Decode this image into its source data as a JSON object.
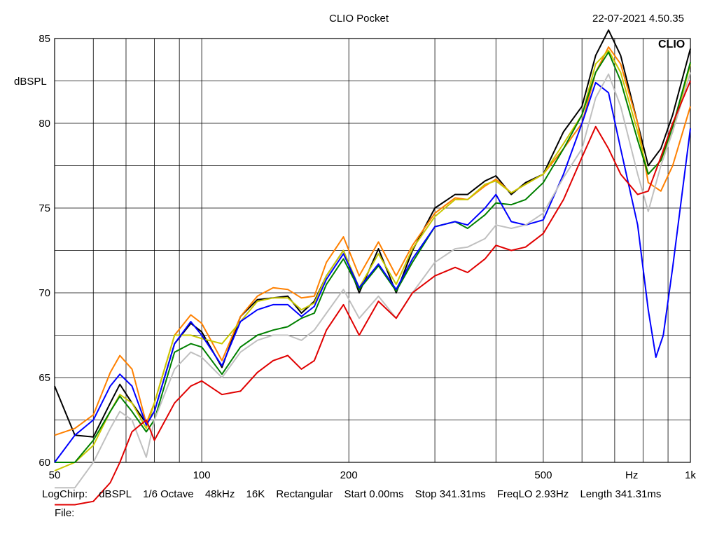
{
  "header": {
    "title": "CLIO Pocket",
    "timestamp": "22-07-2021 4.50.35",
    "logo_text": "CLIO"
  },
  "footer": {
    "items": [
      "LogChirp:",
      "dBSPL",
      "1/6 Octave",
      "48kHz",
      "16K",
      "Rectangular",
      "Start 0.00ms",
      "Stop 341.31ms",
      "FreqLO 2.93Hz",
      "Length 341.31ms"
    ],
    "file_label": "File:"
  },
  "chart_data": {
    "type": "line",
    "title": "CLIO Pocket",
    "xlabel": "Hz",
    "ylabel": "dBSPL",
    "x_scale": "log",
    "xlim": [
      50,
      1000
    ],
    "ylim": [
      60,
      85
    ],
    "x_ticks": [
      {
        "value": 50,
        "label": "50"
      },
      {
        "value": 100,
        "label": "100"
      },
      {
        "value": 200,
        "label": "200"
      },
      {
        "value": 500,
        "label": "500"
      },
      {
        "value": 1000,
        "label": "1k"
      }
    ],
    "y_ticks": [
      {
        "value": 60,
        "label": "60"
      },
      {
        "value": 65,
        "label": "65"
      },
      {
        "value": 70,
        "label": "70"
      },
      {
        "value": 75,
        "label": "75"
      },
      {
        "value": 80,
        "label": "80"
      },
      {
        "value": 85,
        "label": "85"
      }
    ],
    "grid": true,
    "series": [
      {
        "color": "#000000",
        "points": [
          [
            50,
            64.5
          ],
          [
            55,
            61.6
          ],
          [
            60,
            61.5
          ],
          [
            65,
            63.5
          ],
          [
            68,
            64.6
          ],
          [
            72,
            63.5
          ],
          [
            77,
            62.3
          ],
          [
            80,
            63.0
          ],
          [
            88,
            67.0
          ],
          [
            95,
            68.2
          ],
          [
            100,
            67.7
          ],
          [
            110,
            65.6
          ],
          [
            120,
            68.6
          ],
          [
            130,
            69.6
          ],
          [
            140,
            69.7
          ],
          [
            150,
            69.8
          ],
          [
            160,
            68.8
          ],
          [
            170,
            69.5
          ],
          [
            180,
            71.0
          ],
          [
            195,
            72.5
          ],
          [
            210,
            70.0
          ],
          [
            230,
            72.6
          ],
          [
            250,
            70.0
          ],
          [
            270,
            72.5
          ],
          [
            300,
            75.0
          ],
          [
            330,
            75.8
          ],
          [
            350,
            75.8
          ],
          [
            380,
            76.6
          ],
          [
            400,
            76.9
          ],
          [
            430,
            75.8
          ],
          [
            460,
            76.5
          ],
          [
            500,
            77.0
          ],
          [
            550,
            79.5
          ],
          [
            600,
            81.0
          ],
          [
            640,
            84.0
          ],
          [
            680,
            85.5
          ],
          [
            720,
            84.0
          ],
          [
            780,
            80.0
          ],
          [
            820,
            77.5
          ],
          [
            870,
            78.5
          ],
          [
            920,
            80.5
          ],
          [
            1000,
            84.4
          ]
        ]
      },
      {
        "color": "#ff8000",
        "points": [
          [
            50,
            61.6
          ],
          [
            55,
            62.0
          ],
          [
            60,
            62.8
          ],
          [
            65,
            65.3
          ],
          [
            68,
            66.3
          ],
          [
            72,
            65.5
          ],
          [
            77,
            62.3
          ],
          [
            80,
            63.5
          ],
          [
            88,
            67.5
          ],
          [
            95,
            68.7
          ],
          [
            100,
            68.2
          ],
          [
            110,
            66.0
          ],
          [
            120,
            68.6
          ],
          [
            130,
            69.8
          ],
          [
            140,
            70.3
          ],
          [
            150,
            70.2
          ],
          [
            160,
            69.7
          ],
          [
            170,
            69.8
          ],
          [
            180,
            71.8
          ],
          [
            195,
            73.3
          ],
          [
            210,
            71.0
          ],
          [
            230,
            73.0
          ],
          [
            250,
            71.0
          ],
          [
            270,
            72.8
          ],
          [
            300,
            74.7
          ],
          [
            330,
            75.6
          ],
          [
            350,
            75.5
          ],
          [
            380,
            76.3
          ],
          [
            400,
            76.7
          ],
          [
            430,
            75.9
          ],
          [
            460,
            76.4
          ],
          [
            500,
            77.0
          ],
          [
            550,
            78.5
          ],
          [
            600,
            80.0
          ],
          [
            640,
            83.0
          ],
          [
            680,
            84.5
          ],
          [
            720,
            83.5
          ],
          [
            780,
            80.0
          ],
          [
            820,
            76.5
          ],
          [
            870,
            76.0
          ],
          [
            920,
            77.5
          ],
          [
            1000,
            81.0
          ]
        ]
      },
      {
        "color": "#c8c800",
        "points": [
          [
            50,
            59.5
          ],
          [
            55,
            60.0
          ],
          [
            60,
            61.0
          ],
          [
            65,
            63.0
          ],
          [
            68,
            64.0
          ],
          [
            72,
            63.5
          ],
          [
            77,
            62.0
          ],
          [
            80,
            63.5
          ],
          [
            88,
            67.5
          ],
          [
            95,
            67.5
          ],
          [
            100,
            67.3
          ],
          [
            110,
            67.0
          ],
          [
            120,
            68.3
          ],
          [
            130,
            69.5
          ],
          [
            140,
            69.7
          ],
          [
            150,
            69.7
          ],
          [
            160,
            69.0
          ],
          [
            170,
            69.4
          ],
          [
            180,
            71.0
          ],
          [
            195,
            72.5
          ],
          [
            210,
            70.3
          ],
          [
            230,
            72.3
          ],
          [
            250,
            70.5
          ],
          [
            270,
            72.6
          ],
          [
            300,
            74.5
          ],
          [
            330,
            75.5
          ],
          [
            350,
            75.5
          ],
          [
            380,
            76.4
          ],
          [
            400,
            76.6
          ],
          [
            430,
            75.9
          ],
          [
            460,
            76.4
          ],
          [
            500,
            77.0
          ],
          [
            550,
            78.8
          ],
          [
            600,
            80.5
          ],
          [
            640,
            83.5
          ],
          [
            680,
            84.3
          ],
          [
            720,
            83.0
          ],
          [
            780,
            79.5
          ],
          [
            820,
            77.0
          ],
          [
            870,
            77.8
          ],
          [
            920,
            79.5
          ],
          [
            1000,
            83.5
          ]
        ]
      },
      {
        "color": "#008000",
        "points": [
          [
            50,
            60.0
          ],
          [
            55,
            60.0
          ],
          [
            60,
            61.3
          ],
          [
            65,
            63.0
          ],
          [
            68,
            63.9
          ],
          [
            72,
            63.0
          ],
          [
            77,
            61.8
          ],
          [
            80,
            62.5
          ],
          [
            88,
            66.5
          ],
          [
            95,
            67.0
          ],
          [
            100,
            66.8
          ],
          [
            110,
            65.2
          ],
          [
            120,
            66.8
          ],
          [
            130,
            67.5
          ],
          [
            140,
            67.8
          ],
          [
            150,
            68.0
          ],
          [
            160,
            68.5
          ],
          [
            170,
            68.8
          ],
          [
            180,
            70.5
          ],
          [
            195,
            72.0
          ],
          [
            210,
            70.2
          ],
          [
            230,
            71.6
          ],
          [
            250,
            70.1
          ],
          [
            270,
            71.8
          ],
          [
            300,
            73.9
          ],
          [
            330,
            74.2
          ],
          [
            350,
            73.8
          ],
          [
            380,
            74.6
          ],
          [
            400,
            75.3
          ],
          [
            430,
            75.2
          ],
          [
            460,
            75.5
          ],
          [
            500,
            76.5
          ],
          [
            550,
            78.5
          ],
          [
            600,
            80.5
          ],
          [
            640,
            83.0
          ],
          [
            680,
            84.2
          ],
          [
            720,
            82.5
          ],
          [
            780,
            79.0
          ],
          [
            820,
            77.0
          ],
          [
            870,
            77.8
          ],
          [
            920,
            79.8
          ],
          [
            1000,
            83.6
          ]
        ]
      },
      {
        "color": "#0000ff",
        "points": [
          [
            50,
            60.0
          ],
          [
            55,
            61.6
          ],
          [
            60,
            62.5
          ],
          [
            65,
            64.5
          ],
          [
            68,
            65.2
          ],
          [
            72,
            64.5
          ],
          [
            77,
            62.2
          ],
          [
            80,
            63.0
          ],
          [
            88,
            67.0
          ],
          [
            95,
            68.3
          ],
          [
            100,
            67.5
          ],
          [
            110,
            65.7
          ],
          [
            120,
            68.3
          ],
          [
            130,
            69.0
          ],
          [
            140,
            69.3
          ],
          [
            150,
            69.3
          ],
          [
            160,
            68.6
          ],
          [
            170,
            69.2
          ],
          [
            180,
            70.8
          ],
          [
            195,
            72.3
          ],
          [
            210,
            70.3
          ],
          [
            230,
            71.7
          ],
          [
            250,
            70.2
          ],
          [
            270,
            72.0
          ],
          [
            300,
            73.9
          ],
          [
            330,
            74.2
          ],
          [
            350,
            74.0
          ],
          [
            380,
            75.0
          ],
          [
            400,
            75.8
          ],
          [
            430,
            74.2
          ],
          [
            460,
            74.0
          ],
          [
            500,
            74.3
          ],
          [
            550,
            77.0
          ],
          [
            600,
            80.0
          ],
          [
            640,
            82.4
          ],
          [
            680,
            81.8
          ],
          [
            720,
            78.5
          ],
          [
            780,
            74.0
          ],
          [
            820,
            69.0
          ],
          [
            850,
            66.2
          ],
          [
            880,
            67.5
          ],
          [
            920,
            71.5
          ],
          [
            1000,
            79.7
          ]
        ]
      },
      {
        "color": "#c0c0c0",
        "points": [
          [
            50,
            58.5
          ],
          [
            55,
            58.5
          ],
          [
            60,
            60.0
          ],
          [
            65,
            62.0
          ],
          [
            68,
            63.0
          ],
          [
            72,
            62.5
          ],
          [
            77,
            60.3
          ],
          [
            80,
            62.5
          ],
          [
            88,
            65.5
          ],
          [
            95,
            66.5
          ],
          [
            100,
            66.2
          ],
          [
            110,
            65.0
          ],
          [
            120,
            66.5
          ],
          [
            130,
            67.2
          ],
          [
            140,
            67.5
          ],
          [
            150,
            67.5
          ],
          [
            160,
            67.2
          ],
          [
            170,
            67.8
          ],
          [
            180,
            68.8
          ],
          [
            195,
            70.2
          ],
          [
            210,
            68.5
          ],
          [
            230,
            69.8
          ],
          [
            250,
            68.5
          ],
          [
            270,
            70.0
          ],
          [
            300,
            71.8
          ],
          [
            330,
            72.6
          ],
          [
            350,
            72.7
          ],
          [
            380,
            73.2
          ],
          [
            400,
            74.0
          ],
          [
            430,
            73.8
          ],
          [
            460,
            74.0
          ],
          [
            500,
            74.7
          ],
          [
            550,
            76.8
          ],
          [
            600,
            78.5
          ],
          [
            640,
            81.5
          ],
          [
            680,
            82.9
          ],
          [
            720,
            81.0
          ],
          [
            780,
            77.0
          ],
          [
            820,
            74.8
          ],
          [
            870,
            77.5
          ],
          [
            920,
            79.5
          ],
          [
            1000,
            83.0
          ]
        ]
      },
      {
        "color": "#e00000",
        "points": [
          [
            50,
            57.5
          ],
          [
            55,
            57.5
          ],
          [
            60,
            57.7
          ],
          [
            65,
            58.8
          ],
          [
            68,
            60.0
          ],
          [
            72,
            61.8
          ],
          [
            77,
            62.5
          ],
          [
            80,
            61.3
          ],
          [
            88,
            63.5
          ],
          [
            95,
            64.5
          ],
          [
            100,
            64.8
          ],
          [
            110,
            64.0
          ],
          [
            120,
            64.2
          ],
          [
            130,
            65.3
          ],
          [
            140,
            66.0
          ],
          [
            150,
            66.3
          ],
          [
            160,
            65.5
          ],
          [
            170,
            66.0
          ],
          [
            180,
            67.8
          ],
          [
            195,
            69.3
          ],
          [
            210,
            67.5
          ],
          [
            230,
            69.5
          ],
          [
            250,
            68.5
          ],
          [
            270,
            70.0
          ],
          [
            300,
            71.0
          ],
          [
            330,
            71.5
          ],
          [
            350,
            71.2
          ],
          [
            380,
            72.0
          ],
          [
            400,
            72.8
          ],
          [
            430,
            72.5
          ],
          [
            460,
            72.7
          ],
          [
            500,
            73.5
          ],
          [
            550,
            75.5
          ],
          [
            600,
            78.0
          ],
          [
            640,
            79.8
          ],
          [
            680,
            78.5
          ],
          [
            720,
            77.0
          ],
          [
            780,
            75.8
          ],
          [
            820,
            76.0
          ],
          [
            870,
            78.0
          ],
          [
            920,
            80.0
          ],
          [
            1000,
            82.5
          ]
        ]
      }
    ]
  }
}
